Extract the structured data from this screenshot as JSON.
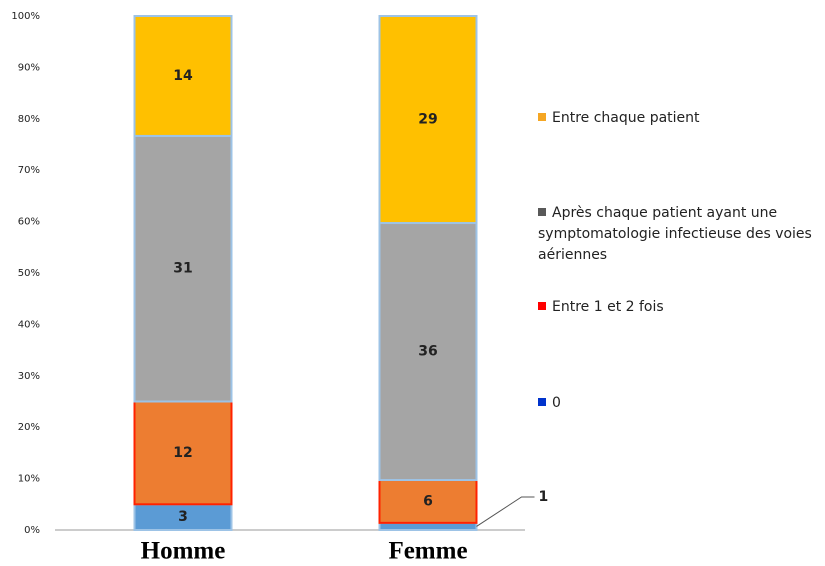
{
  "chart_data": {
    "type": "bar",
    "stacked": "percent",
    "categories": [
      "Homme",
      "Femme"
    ],
    "series": [
      {
        "name": "0",
        "color": "#5b9bd5",
        "legend_color": "#0033cc",
        "values": [
          3,
          1
        ]
      },
      {
        "name": "Entre 1 et 2 fois",
        "color": "#ed7d31",
        "legend_color": "#ff0000",
        "values": [
          12,
          6
        ]
      },
      {
        "name": "Après chaque patient ayant une symptomatologie infectieuse des voies aériennes",
        "color": "#a5a5a5",
        "legend_color": "#595959",
        "values": [
          31,
          36
        ]
      },
      {
        "name": "Entre chaque patient",
        "color": "#ffc000",
        "legend_color": "#f5a623",
        "values": [
          14,
          29
        ]
      }
    ],
    "ylim": [
      0,
      100
    ],
    "yticks": [
      {
        "value": 0,
        "label": "0%"
      },
      {
        "value": 10,
        "label": "10%"
      },
      {
        "value": 20,
        "label": "20%"
      },
      {
        "value": 30,
        "label": "30%"
      },
      {
        "value": 40,
        "label": "40%"
      },
      {
        "value": 50,
        "label": "50%"
      },
      {
        "value": 60,
        "label": "60%"
      },
      {
        "value": 70,
        "label": "70%"
      },
      {
        "value": 80,
        "label": "80%"
      },
      {
        "value": 90,
        "label": "90%"
      },
      {
        "value": 100,
        "label": "100%"
      }
    ],
    "grid": false
  }
}
